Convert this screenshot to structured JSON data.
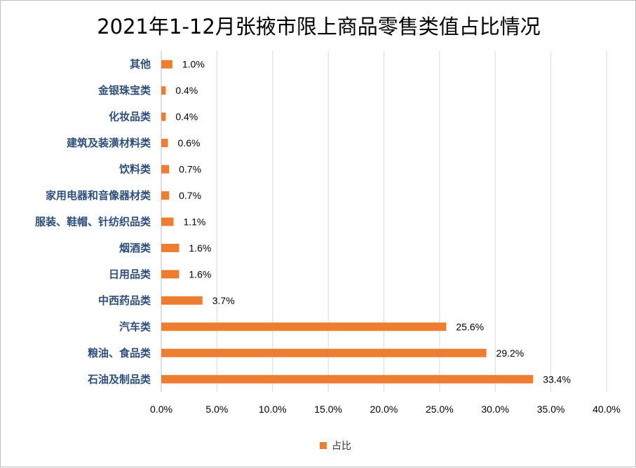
{
  "chart_data": {
    "type": "bar",
    "orientation": "horizontal",
    "title": "2021年1-12月张掖市限上商品零售类值占比情况",
    "categories": [
      "其他",
      "金银珠宝类",
      "化妆品类",
      "建筑及装潢材料类",
      "饮料类",
      "家用电器和音像器材类",
      "服装、鞋帽、针纺织品类",
      "烟酒类",
      "日用品类",
      "中西药品类",
      "汽车类",
      "粮油、食品类",
      "石油及制品类"
    ],
    "series": [
      {
        "name": "占比",
        "color": "#ed7d31",
        "values": [
          1.0,
          0.4,
          0.4,
          0.6,
          0.7,
          0.7,
          1.1,
          1.6,
          1.6,
          3.7,
          25.6,
          29.2,
          33.4
        ],
        "labels": [
          "1.0%",
          "0.4%",
          "0.4%",
          "0.6%",
          "0.7%",
          "0.7%",
          "1.1%",
          "1.6%",
          "1.6%",
          "3.7%",
          "25.6%",
          "29.2%",
          "33.4%"
        ]
      }
    ],
    "xlim": [
      0,
      40
    ],
    "xticks": [
      0,
      5,
      10,
      15,
      20,
      25,
      30,
      35,
      40
    ],
    "xtick_labels": [
      "0.0%",
      "5.0%",
      "10.0%",
      "15.0%",
      "20.0%",
      "25.0%",
      "30.0%",
      "35.0%",
      "40.0%"
    ],
    "grid": "vertical",
    "legend": "bottom",
    "gridline_color": "#d9d9d9",
    "category_label_color": "#2e4f7a"
  }
}
